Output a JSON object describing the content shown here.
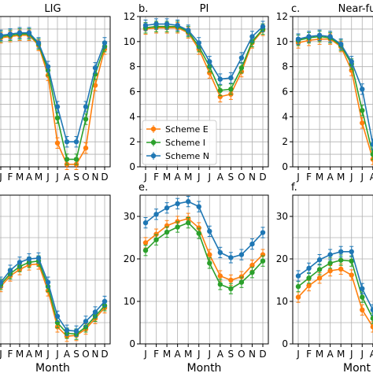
{
  "colors": {
    "scheme_e": "#ff7f0e",
    "scheme_i": "#2ca02c",
    "scheme_n": "#1f77b4",
    "grid": "#b0b0b0"
  },
  "legend": {
    "entries": [
      "Scheme E",
      "Scheme I",
      "Scheme N"
    ],
    "placement": "lower-left (panel b)"
  },
  "chart_data": [
    {
      "id": "a",
      "panel_label": "",
      "title": "LIG",
      "type": "line",
      "ylim": [
        0,
        12
      ],
      "yticks": [],
      "xlabel": "",
      "categories": [
        "J",
        "F",
        "M",
        "A",
        "M",
        "J",
        "J",
        "A",
        "S",
        "O",
        "N",
        "D"
      ],
      "series": [
        {
          "name": "Scheme E",
          "values": [
            10.3,
            10.4,
            10.5,
            10.5,
            9.7,
            7.3,
            1.9,
            0.2,
            0.2,
            1.5,
            6.5,
            9.4
          ]
        },
        {
          "name": "Scheme I",
          "values": [
            10.4,
            10.5,
            10.6,
            10.6,
            9.8,
            7.7,
            3.9,
            0.6,
            0.6,
            3.8,
            7.4,
            9.6
          ]
        },
        {
          "name": "Scheme N",
          "values": [
            10.5,
            10.6,
            10.7,
            10.7,
            9.9,
            8.0,
            4.8,
            2.0,
            2.0,
            4.8,
            7.9,
            9.9
          ]
        }
      ]
    },
    {
      "id": "b",
      "panel_label": "b.",
      "title": "PI",
      "type": "line",
      "ylim": [
        0,
        12
      ],
      "yticks": [
        0,
        2,
        4,
        6,
        8,
        10,
        12
      ],
      "xlabel": "",
      "categories": [
        "J",
        "F",
        "M",
        "A",
        "M",
        "J",
        "J",
        "A",
        "S",
        "O",
        "N",
        "D"
      ],
      "series": [
        {
          "name": "Scheme E",
          "values": [
            11.0,
            11.1,
            11.1,
            11.1,
            10.7,
            9.4,
            7.5,
            5.6,
            5.8,
            7.6,
            9.9,
            10.9
          ]
        },
        {
          "name": "Scheme I",
          "values": [
            11.1,
            11.2,
            11.2,
            11.2,
            10.8,
            9.6,
            8.0,
            6.1,
            6.2,
            7.9,
            10.0,
            11.0
          ]
        },
        {
          "name": "Scheme N",
          "values": [
            11.3,
            11.4,
            11.4,
            11.3,
            10.9,
            9.9,
            8.4,
            7.0,
            7.1,
            8.7,
            10.4,
            11.2
          ]
        }
      ]
    },
    {
      "id": "c",
      "panel_label": "c.",
      "title": "Near-fu",
      "type": "line",
      "ylim": [
        0,
        12
      ],
      "yticks": [
        0,
        2,
        4,
        6,
        8,
        10,
        12
      ],
      "xlabel": "",
      "categories": [
        "J",
        "F",
        "M",
        "A",
        "M",
        "J",
        "J",
        "A",
        "S",
        "O",
        "N",
        "D"
      ],
      "series": [
        {
          "name": "Scheme E",
          "values": [
            9.9,
            10.1,
            10.2,
            10.2,
            9.6,
            7.7,
            3.5,
            0.6,
            0.4,
            1.5,
            5.5,
            9.0
          ]
        },
        {
          "name": "Scheme I",
          "values": [
            10.1,
            10.3,
            10.4,
            10.3,
            9.7,
            8.2,
            4.5,
            1.0,
            0.8,
            3.0,
            6.8,
            9.3
          ]
        },
        {
          "name": "Scheme N",
          "values": [
            10.2,
            10.4,
            10.5,
            10.4,
            9.8,
            8.4,
            6.2,
            1.8,
            1.5,
            3.7,
            7.3,
            9.6
          ]
        }
      ]
    },
    {
      "id": "d",
      "panel_label": "",
      "title": "",
      "type": "line",
      "ylim": [
        0,
        35
      ],
      "yticks": [],
      "xlabel": "Month",
      "categories": [
        "J",
        "F",
        "M",
        "A",
        "M",
        "J",
        "J",
        "A",
        "S",
        "O",
        "N",
        "D"
      ],
      "series": [
        {
          "name": "Scheme E",
          "values": [
            13.5,
            16.0,
            17.5,
            18.6,
            18.8,
            12.5,
            4.0,
            1.8,
            2.0,
            3.5,
            6.0,
            8.5
          ]
        },
        {
          "name": "Scheme I",
          "values": [
            14.0,
            16.5,
            18.2,
            19.2,
            19.5,
            13.5,
            5.0,
            2.5,
            2.3,
            4.0,
            6.5,
            9.0
          ]
        },
        {
          "name": "Scheme N",
          "values": [
            14.5,
            17.3,
            19.2,
            20.0,
            20.2,
            14.5,
            6.5,
            3.2,
            3.0,
            5.3,
            7.5,
            10.0
          ]
        }
      ]
    },
    {
      "id": "e",
      "panel_label": "e.",
      "title": "",
      "type": "line",
      "ylim": [
        0,
        35
      ],
      "yticks": [
        0,
        10,
        20,
        30
      ],
      "xlabel": "Month",
      "categories": [
        "J",
        "F",
        "M",
        "A",
        "M",
        "J",
        "J",
        "A",
        "S",
        "O",
        "N",
        "D"
      ],
      "series": [
        {
          "name": "Scheme E",
          "values": [
            23.8,
            25.8,
            27.8,
            28.8,
            29.5,
            27.3,
            21.0,
            16.0,
            15.0,
            15.8,
            18.5,
            21.0
          ]
        },
        {
          "name": "Scheme I",
          "values": [
            22.0,
            24.5,
            26.3,
            27.5,
            28.5,
            26.0,
            19.0,
            14.0,
            13.0,
            14.5,
            16.8,
            19.5
          ]
        },
        {
          "name": "Scheme N",
          "values": [
            28.5,
            30.5,
            32.0,
            33.0,
            33.5,
            32.3,
            26.5,
            21.5,
            20.3,
            21.0,
            23.5,
            26.2
          ]
        }
      ]
    },
    {
      "id": "f",
      "panel_label": "f.",
      "title": "",
      "type": "line",
      "ylim": [
        0,
        35
      ],
      "yticks": [
        0,
        10,
        20,
        30
      ],
      "xlabel": "Mont",
      "categories": [
        "J",
        "F",
        "M",
        "A",
        "M",
        "J",
        "J",
        "A",
        "S",
        "O",
        "N",
        "D"
      ],
      "series": [
        {
          "name": "Scheme E",
          "values": [
            11.0,
            13.7,
            15.5,
            17.2,
            17.6,
            16.2,
            8.0,
            4.0,
            3.5,
            5.0,
            8.0,
            10.0
          ]
        },
        {
          "name": "Scheme I",
          "values": [
            13.5,
            15.5,
            17.5,
            19.0,
            19.7,
            19.5,
            11.0,
            6.0,
            5.5,
            7.0,
            10.0,
            12.0
          ]
        },
        {
          "name": "Scheme N",
          "values": [
            16.0,
            17.8,
            19.8,
            21.0,
            21.7,
            21.7,
            13.0,
            8.0,
            7.0,
            9.0,
            12.0,
            14.0
          ]
        }
      ]
    }
  ]
}
